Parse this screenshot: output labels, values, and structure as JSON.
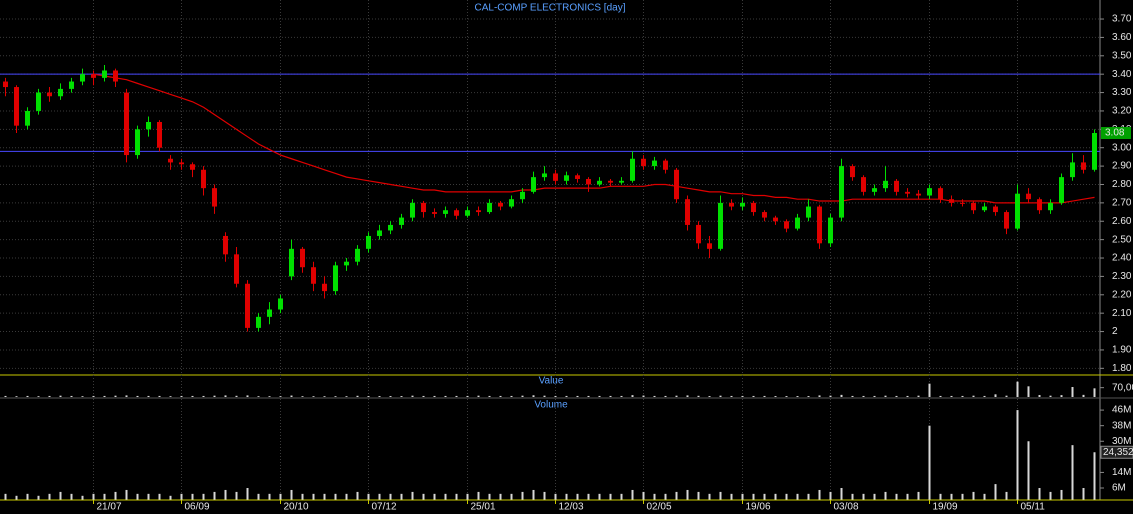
{
  "chart_data": {
    "type": "candlestick",
    "title": "CAL-COMP ELECTRONICS [day]",
    "up_color": "#00e000",
    "down_color": "#e00000",
    "grid": true,
    "categories": [
      null,
      null,
      null,
      null,
      null,
      null,
      null,
      null,
      "21/07",
      null,
      null,
      null,
      null,
      null,
      null,
      null,
      "06/09",
      null,
      null,
      null,
      null,
      null,
      null,
      null,
      null,
      "20/10",
      null,
      null,
      null,
      null,
      null,
      null,
      null,
      "07/12",
      null,
      null,
      null,
      null,
      null,
      null,
      null,
      null,
      "25/01",
      null,
      null,
      null,
      null,
      null,
      null,
      null,
      "12/03",
      null,
      null,
      null,
      null,
      null,
      null,
      null,
      "02/05",
      null,
      null,
      null,
      null,
      null,
      null,
      null,
      null,
      "19/06",
      null,
      null,
      null,
      null,
      null,
      null,
      null,
      "03/08",
      null,
      null,
      null,
      null,
      null,
      null,
      null,
      null,
      "19/09",
      null,
      null,
      null,
      null,
      null,
      null,
      null,
      "05/11",
      null,
      null,
      null,
      null,
      null,
      null,
      null
    ],
    "candles": [
      [
        3.36,
        3.38,
        3.28,
        3.33
      ],
      [
        3.33,
        3.34,
        3.08,
        3.12
      ],
      [
        3.12,
        3.22,
        3.1,
        3.2
      ],
      [
        3.2,
        3.32,
        3.18,
        3.3
      ],
      [
        3.3,
        3.33,
        3.25,
        3.28
      ],
      [
        3.28,
        3.35,
        3.26,
        3.32
      ],
      [
        3.32,
        3.38,
        3.3,
        3.36
      ],
      [
        3.36,
        3.43,
        3.34,
        3.4
      ],
      [
        3.4,
        3.42,
        3.34,
        3.38
      ],
      [
        3.38,
        3.45,
        3.36,
        3.42
      ],
      [
        3.42,
        3.43,
        3.33,
        3.36
      ],
      [
        3.3,
        3.32,
        2.92,
        2.96
      ],
      [
        2.96,
        3.12,
        2.94,
        3.1
      ],
      [
        3.1,
        3.17,
        3.06,
        3.14
      ],
      [
        3.14,
        3.15,
        2.98,
        3.0
      ],
      [
        2.94,
        2.96,
        2.88,
        2.92
      ],
      [
        2.92,
        2.94,
        2.88,
        2.91
      ],
      [
        2.91,
        2.92,
        2.84,
        2.88
      ],
      [
        2.88,
        2.9,
        2.74,
        2.78
      ],
      [
        2.78,
        2.8,
        2.64,
        2.68
      ],
      [
        2.52,
        2.54,
        2.38,
        2.42
      ],
      [
        2.42,
        2.46,
        2.24,
        2.26
      ],
      [
        2.26,
        2.28,
        2.0,
        2.02
      ],
      [
        2.02,
        2.1,
        2.0,
        2.08
      ],
      [
        2.08,
        2.16,
        2.04,
        2.12
      ],
      [
        2.12,
        2.2,
        2.1,
        2.18
      ],
      [
        2.3,
        2.5,
        2.28,
        2.45
      ],
      [
        2.45,
        2.46,
        2.32,
        2.35
      ],
      [
        2.35,
        2.38,
        2.22,
        2.26
      ],
      [
        2.26,
        2.3,
        2.18,
        2.22
      ],
      [
        2.22,
        2.38,
        2.2,
        2.36
      ],
      [
        2.36,
        2.4,
        2.33,
        2.38
      ],
      [
        2.38,
        2.47,
        2.36,
        2.45
      ],
      [
        2.45,
        2.54,
        2.43,
        2.52
      ],
      [
        2.52,
        2.58,
        2.5,
        2.55
      ],
      [
        2.55,
        2.6,
        2.53,
        2.58
      ],
      [
        2.58,
        2.64,
        2.56,
        2.62
      ],
      [
        2.62,
        2.72,
        2.6,
        2.7
      ],
      [
        2.7,
        2.71,
        2.62,
        2.65
      ],
      [
        2.65,
        2.67,
        2.62,
        2.64
      ],
      [
        2.64,
        2.68,
        2.62,
        2.66
      ],
      [
        2.66,
        2.67,
        2.61,
        2.63
      ],
      [
        2.63,
        2.68,
        2.62,
        2.66
      ],
      [
        2.66,
        2.68,
        2.63,
        2.65
      ],
      [
        2.65,
        2.72,
        2.64,
        2.7
      ],
      [
        2.7,
        2.71,
        2.66,
        2.68
      ],
      [
        2.68,
        2.74,
        2.67,
        2.72
      ],
      [
        2.72,
        2.78,
        2.7,
        2.76
      ],
      [
        2.76,
        2.87,
        2.75,
        2.84
      ],
      [
        2.84,
        2.9,
        2.82,
        2.86
      ],
      [
        2.86,
        2.88,
        2.8,
        2.82
      ],
      [
        2.82,
        2.87,
        2.8,
        2.85
      ],
      [
        2.85,
        2.86,
        2.81,
        2.83
      ],
      [
        2.83,
        2.84,
        2.76,
        2.8
      ],
      [
        2.8,
        2.84,
        2.79,
        2.82
      ],
      [
        2.82,
        2.83,
        2.79,
        2.81
      ],
      [
        2.81,
        2.84,
        2.8,
        2.82
      ],
      [
        2.82,
        2.98,
        2.81,
        2.94
      ],
      [
        2.94,
        2.96,
        2.88,
        2.9
      ],
      [
        2.9,
        2.95,
        2.88,
        2.93
      ],
      [
        2.93,
        2.94,
        2.86,
        2.88
      ],
      [
        2.88,
        2.89,
        2.7,
        2.72
      ],
      [
        2.72,
        2.74,
        2.55,
        2.58
      ],
      [
        2.58,
        2.6,
        2.45,
        2.48
      ],
      [
        2.48,
        2.52,
        2.4,
        2.45
      ],
      [
        2.45,
        2.74,
        2.44,
        2.7
      ],
      [
        2.7,
        2.72,
        2.66,
        2.68
      ],
      [
        2.68,
        2.73,
        2.66,
        2.7
      ],
      [
        2.7,
        2.71,
        2.63,
        2.65
      ],
      [
        2.65,
        2.66,
        2.6,
        2.62
      ],
      [
        2.62,
        2.63,
        2.58,
        2.6
      ],
      [
        2.6,
        2.61,
        2.54,
        2.56
      ],
      [
        2.56,
        2.64,
        2.55,
        2.62
      ],
      [
        2.62,
        2.72,
        2.6,
        2.68
      ],
      [
        2.68,
        2.69,
        2.45,
        2.48
      ],
      [
        2.48,
        2.64,
        2.46,
        2.62
      ],
      [
        2.62,
        2.94,
        2.6,
        2.9
      ],
      [
        2.9,
        2.91,
        2.82,
        2.84
      ],
      [
        2.84,
        2.85,
        2.74,
        2.76
      ],
      [
        2.76,
        2.8,
        2.74,
        2.78
      ],
      [
        2.78,
        2.9,
        2.76,
        2.82
      ],
      [
        2.82,
        2.83,
        2.74,
        2.76
      ],
      [
        2.76,
        2.78,
        2.73,
        2.75
      ],
      [
        2.75,
        2.77,
        2.72,
        2.74
      ],
      [
        2.74,
        2.8,
        2.72,
        2.78
      ],
      [
        2.78,
        2.79,
        2.7,
        2.72
      ],
      [
        2.72,
        2.74,
        2.68,
        2.7
      ],
      [
        2.7,
        2.72,
        2.68,
        2.7
      ],
      [
        2.7,
        2.71,
        2.64,
        2.66
      ],
      [
        2.66,
        2.7,
        2.65,
        2.68
      ],
      [
        2.68,
        2.69,
        2.63,
        2.65
      ],
      [
        2.65,
        2.66,
        2.53,
        2.56
      ],
      [
        2.56,
        2.8,
        2.55,
        2.75
      ],
      [
        2.75,
        2.78,
        2.7,
        2.72
      ],
      [
        2.72,
        2.73,
        2.64,
        2.66
      ],
      [
        2.66,
        2.72,
        2.64,
        2.7
      ],
      [
        2.7,
        2.86,
        2.69,
        2.84
      ],
      [
        2.84,
        2.97,
        2.82,
        2.92
      ],
      [
        2.92,
        2.96,
        2.86,
        2.88
      ],
      [
        2.88,
        3.1,
        2.87,
        3.08
      ]
    ],
    "moving_average": {
      "color": "#e00000",
      "values": [
        null,
        null,
        null,
        null,
        null,
        null,
        null,
        null,
        3.4,
        3.39,
        3.38,
        3.37,
        3.35,
        3.33,
        3.31,
        3.29,
        3.27,
        3.25,
        3.22,
        3.18,
        3.14,
        3.1,
        3.06,
        3.02,
        2.99,
        2.96,
        2.94,
        2.92,
        2.9,
        2.88,
        2.86,
        2.84,
        2.83,
        2.82,
        2.81,
        2.8,
        2.79,
        2.78,
        2.77,
        2.77,
        2.76,
        2.76,
        2.76,
        2.76,
        2.76,
        2.76,
        2.76,
        2.77,
        2.77,
        2.78,
        2.78,
        2.78,
        2.78,
        2.78,
        2.78,
        2.79,
        2.79,
        2.79,
        2.79,
        2.8,
        2.8,
        2.79,
        2.78,
        2.77,
        2.76,
        2.76,
        2.75,
        2.75,
        2.74,
        2.74,
        2.73,
        2.73,
        2.72,
        2.72,
        2.71,
        2.71,
        2.71,
        2.72,
        2.72,
        2.72,
        2.72,
        2.72,
        2.72,
        2.72,
        2.72,
        2.72,
        2.71,
        2.71,
        2.71,
        2.71,
        2.7,
        2.7,
        2.7,
        2.7,
        2.7,
        2.7,
        2.7,
        2.71,
        2.72,
        2.73
      ]
    },
    "hlines": [
      3.4,
      2.98
    ],
    "hline_color": "#4848ff",
    "ylim": [
      1.78,
      3.76
    ],
    "yticks": [
      {
        "value": 1.8,
        "label": "1.80"
      },
      {
        "value": 1.9,
        "label": "1.90"
      },
      2,
      {
        "value": 2.1,
        "label": "2.10"
      },
      {
        "value": 2.2,
        "label": "2.20"
      },
      {
        "value": 2.3,
        "label": "2.30"
      },
      {
        "value": 2.4,
        "label": "2.40"
      },
      {
        "value": 2.5,
        "label": "2.50"
      },
      {
        "value": 2.6,
        "label": "2.60"
      },
      {
        "value": 2.7,
        "label": "2.70"
      },
      {
        "value": 2.8,
        "label": "2.80"
      },
      {
        "value": 2.9,
        "label": "2.90"
      },
      {
        "value": 3.0,
        "label": "3.00"
      },
      {
        "value": 3.1,
        "label": "3.10"
      },
      {
        "value": 3.2,
        "label": "3.20"
      },
      {
        "value": 3.3,
        "label": "3.30"
      },
      {
        "value": 3.4,
        "label": "3.40"
      },
      {
        "value": 3.5,
        "label": "3.50"
      },
      {
        "value": 3.6,
        "label": "3.60"
      },
      {
        "value": 3.7,
        "label": "3.70"
      }
    ],
    "value_panel": {
      "label": "Value",
      "color": "#d8d8d8",
      "ylim": [
        0,
        150
      ],
      "yticks": [
        {
          "value": 70,
          "label": "70,00"
        }
      ],
      "values": [
        8,
        6,
        8,
        6,
        8,
        10,
        8,
        6,
        8,
        8,
        10,
        12,
        8,
        8,
        8,
        6,
        8,
        8,
        8,
        10,
        12,
        9,
        12,
        6,
        6,
        6,
        11,
        6,
        6,
        6,
        6,
        6,
        9,
        7,
        7,
        7,
        7,
        10,
        8,
        8,
        8,
        8,
        8,
        10,
        8,
        8,
        8,
        10,
        13,
        10,
        8,
        8,
        8,
        8,
        8,
        8,
        8,
        14,
        11,
        8,
        8,
        10,
        12,
        9,
        7,
        10,
        8,
        8,
        8,
        8,
        7,
        7,
        7,
        7,
        12,
        10,
        16,
        8,
        8,
        8,
        10,
        8,
        8,
        10,
        100,
        8,
        8,
        8,
        10,
        8,
        20,
        10,
        115,
        80,
        15,
        10,
        14,
        75,
        16,
        65
      ]
    },
    "volume_panel": {
      "label": "Volume",
      "color": "#d8d8d8",
      "ylim": [
        0,
        52
      ],
      "yticks": [
        {
          "value": 6,
          "label": "6M"
        },
        {
          "value": 14,
          "label": "14M"
        },
        {
          "value": 30,
          "label": "30M"
        },
        {
          "value": 38,
          "label": "38M"
        },
        {
          "value": 46,
          "label": "46M"
        }
      ],
      "current_label": "24,352",
      "values": [
        3,
        2,
        3,
        2,
        3,
        4,
        3,
        2,
        3,
        3,
        4,
        5,
        3,
        3,
        3,
        2,
        3,
        3,
        3,
        4,
        5,
        4,
        6,
        3,
        3,
        3,
        5,
        3,
        3,
        3,
        3,
        3,
        4,
        3,
        3,
        3,
        3,
        4,
        3,
        3,
        3,
        3,
        3,
        4,
        3,
        3,
        3,
        4,
        5,
        4,
        3,
        3,
        3,
        3,
        3,
        3,
        3,
        5,
        4,
        3,
        3,
        4,
        5,
        4,
        3,
        4,
        3,
        3,
        3,
        3,
        3,
        3,
        3,
        3,
        5,
        4,
        6,
        3,
        3,
        3,
        4,
        3,
        3,
        4,
        38,
        3,
        3,
        3,
        4,
        3,
        8,
        4,
        46,
        30,
        6,
        4,
        5,
        28,
        6,
        24.352
      ]
    }
  }
}
